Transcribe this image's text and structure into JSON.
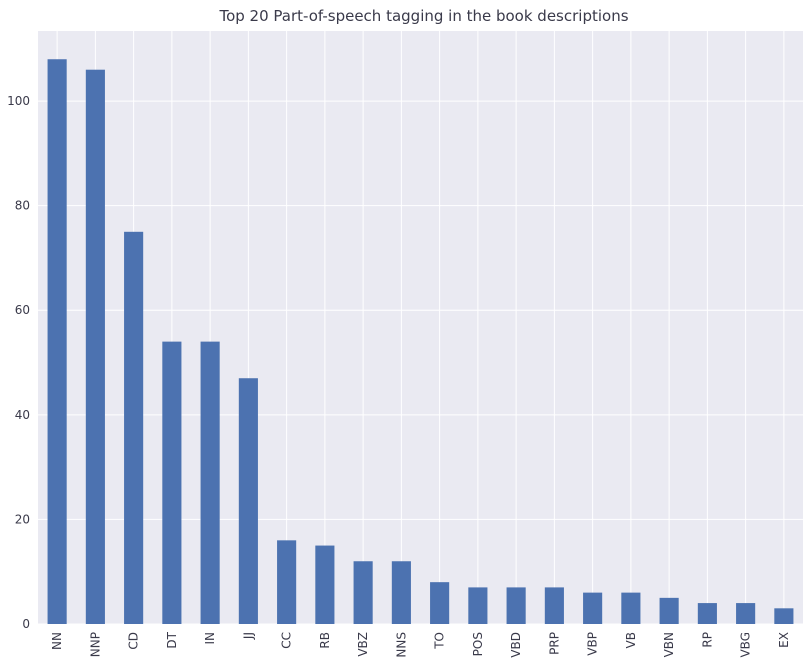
{
  "chart_data": {
    "type": "bar",
    "title": "Top 20 Part-of-speech tagging in the book descriptions",
    "xlabel": "",
    "ylabel": "",
    "categories": [
      "NN",
      "NNP",
      "CD",
      "DT",
      "IN",
      "JJ",
      "CC",
      "RB",
      "VBZ",
      "NNS",
      "TO",
      "POS",
      "VBD",
      "PRP",
      "VBP",
      "VB",
      "VBN",
      "RP",
      "VBG",
      "EX"
    ],
    "values": [
      108,
      106,
      75,
      54,
      54,
      47,
      16,
      15,
      12,
      12,
      8,
      7,
      7,
      7,
      6,
      6,
      5,
      4,
      4,
      3
    ],
    "yticks": [
      0,
      20,
      40,
      60,
      80,
      100
    ],
    "ylim": [
      0,
      113.4
    ],
    "grid": true,
    "legend": "none",
    "colors": {
      "bar": "#4c72b0",
      "background": "#eaeaf2",
      "grid": "#ffffff",
      "text": "#3a3a4a"
    }
  }
}
